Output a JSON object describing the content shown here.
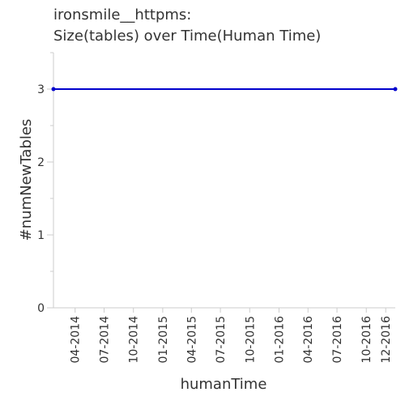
{
  "chart_data": {
    "type": "line",
    "title_lines": [
      "ironsmile__httpms:",
      "Size(tables) over Time(Human Time)"
    ],
    "xlabel": "humanTime",
    "ylabel": "#numNewTables",
    "ylim": [
      0,
      3.5
    ],
    "yticks": [
      0,
      1,
      2,
      3
    ],
    "xticks": [
      "04-2014",
      "07-2014",
      "10-2014",
      "01-2015",
      "04-2015",
      "07-2015",
      "10-2015",
      "01-2016",
      "04-2016",
      "07-2016",
      "10-2016",
      "12-2016"
    ],
    "grid": false,
    "series": [
      {
        "color": "#0000cc",
        "points": [
          {
            "x": "2014-01-23",
            "y": 3
          },
          {
            "x": "2016-12-31",
            "y": 3
          }
        ]
      }
    ]
  }
}
